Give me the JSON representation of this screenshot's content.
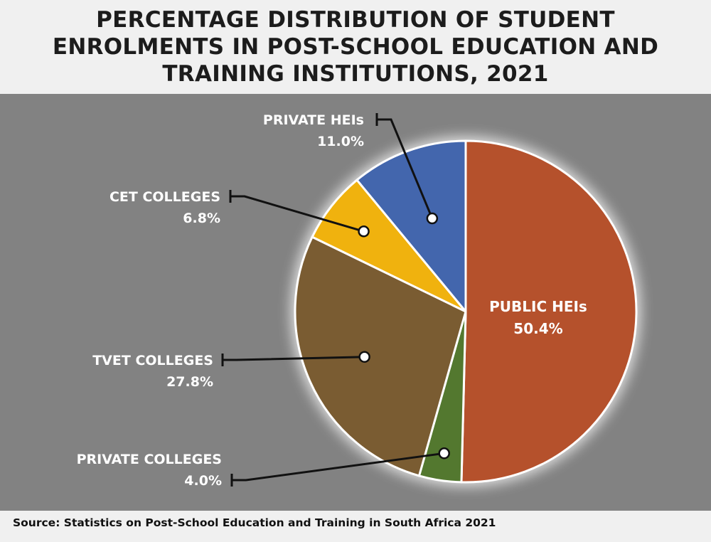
{
  "title": "PERCENTAGE DISTRIBUTION OF STUDENT\nENROLMENTS IN POST-SCHOOL EDUCATION AND\nTRAINING INSTITUTIONS, 2021",
  "source": "Source: Statistics on Post-School Education and Training in South Africa 2021",
  "chart_data": {
    "type": "pie",
    "title": "PERCENTAGE DISTRIBUTION OF STUDENT ENROLMENTS IN POST-SCHOOL EDUCATION AND TRAINING INSTITUTIONS, 2021",
    "slices": [
      {
        "label": "PUBLIC HEIs",
        "value": 50.4,
        "display": "50.4%",
        "color": "#b5512c"
      },
      {
        "label": "PRIVATE COLLEGES",
        "value": 4.0,
        "display": "4.0%",
        "color": "#53782f"
      },
      {
        "label": "TVET COLLEGES",
        "value": 27.8,
        "display": "27.8%",
        "color": "#7a5c32"
      },
      {
        "label": "CET COLLEGES",
        "value": 6.8,
        "display": "6.8%",
        "color": "#f0b20e"
      },
      {
        "label": "PRIVATE HEIs",
        "value": 11.0,
        "display": "11.0%",
        "color": "#4366ad"
      }
    ],
    "start": "12 o'clock",
    "direction": "clockwise"
  }
}
